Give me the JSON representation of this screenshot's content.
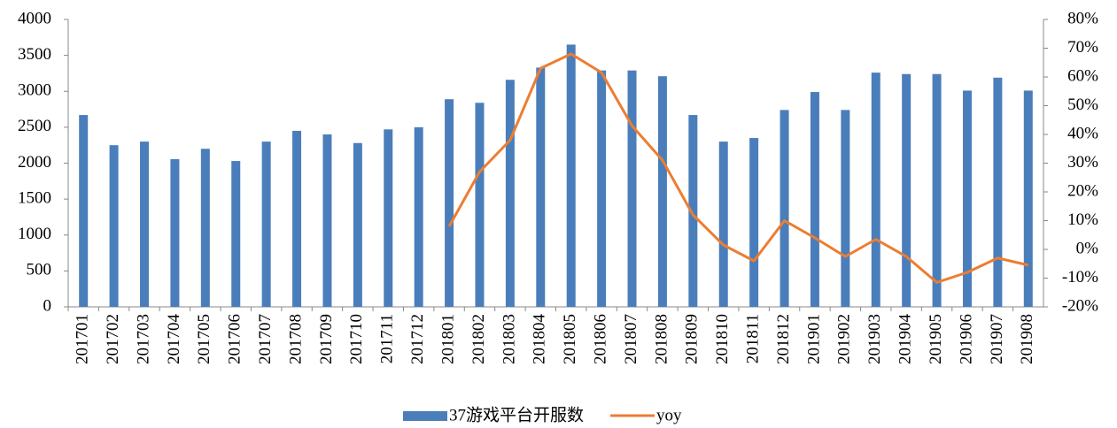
{
  "chart_data": {
    "type": "bar",
    "categories": [
      "201701",
      "201702",
      "201703",
      "201704",
      "201705",
      "201706",
      "201707",
      "201708",
      "201709",
      "201710",
      "201711",
      "201712",
      "201801",
      "201802",
      "201803",
      "201804",
      "201805",
      "201806",
      "201807",
      "201808",
      "201809",
      "201810",
      "201811",
      "201812",
      "201901",
      "201902",
      "201903",
      "201904",
      "201905",
      "201906",
      "201907",
      "201908"
    ],
    "series": [
      {
        "name": "37游戏平台开服数",
        "type": "bar",
        "color": "#4a7ebb",
        "values": [
          2670,
          2250,
          2300,
          2055,
          2200,
          2030,
          2300,
          2450,
          2400,
          2280,
          2470,
          2500,
          2890,
          2840,
          3160,
          3330,
          3650,
          3290,
          3290,
          3210,
          2670,
          2300,
          2350,
          2740,
          2990,
          2740,
          3260,
          3240,
          3240,
          3010,
          3190,
          3010
        ]
      },
      {
        "name": "yoy",
        "type": "line",
        "axis": "y2",
        "color": "#ed7d31",
        "values": [
          null,
          null,
          null,
          null,
          null,
          null,
          null,
          null,
          null,
          null,
          null,
          null,
          8,
          27,
          38,
          63,
          68,
          61.5,
          43,
          31,
          12,
          1.5,
          -4,
          10,
          4,
          -2.5,
          3.5,
          -2.5,
          -11.5,
          -8,
          -3,
          -5.5
        ]
      }
    ],
    "ylim": [
      0,
      4000
    ],
    "yticks": [
      0,
      500,
      1000,
      1500,
      2000,
      2500,
      3000,
      3500,
      4000
    ],
    "y2lim": [
      -20,
      80
    ],
    "y2ticks": [
      {
        "value": -20,
        "label": "-20%"
      },
      {
        "value": -10,
        "label": "-10%"
      },
      {
        "value": 0,
        "label": "0%"
      },
      {
        "value": 10,
        "label": "10%"
      },
      {
        "value": 20,
        "label": "20%"
      },
      {
        "value": 30,
        "label": "30%"
      },
      {
        "value": 40,
        "label": "40%"
      },
      {
        "value": 50,
        "label": "50%"
      },
      {
        "value": 60,
        "label": "60%"
      },
      {
        "value": 70,
        "label": "70%"
      },
      {
        "value": 80,
        "label": "80%"
      }
    ],
    "legend": "bottom"
  }
}
